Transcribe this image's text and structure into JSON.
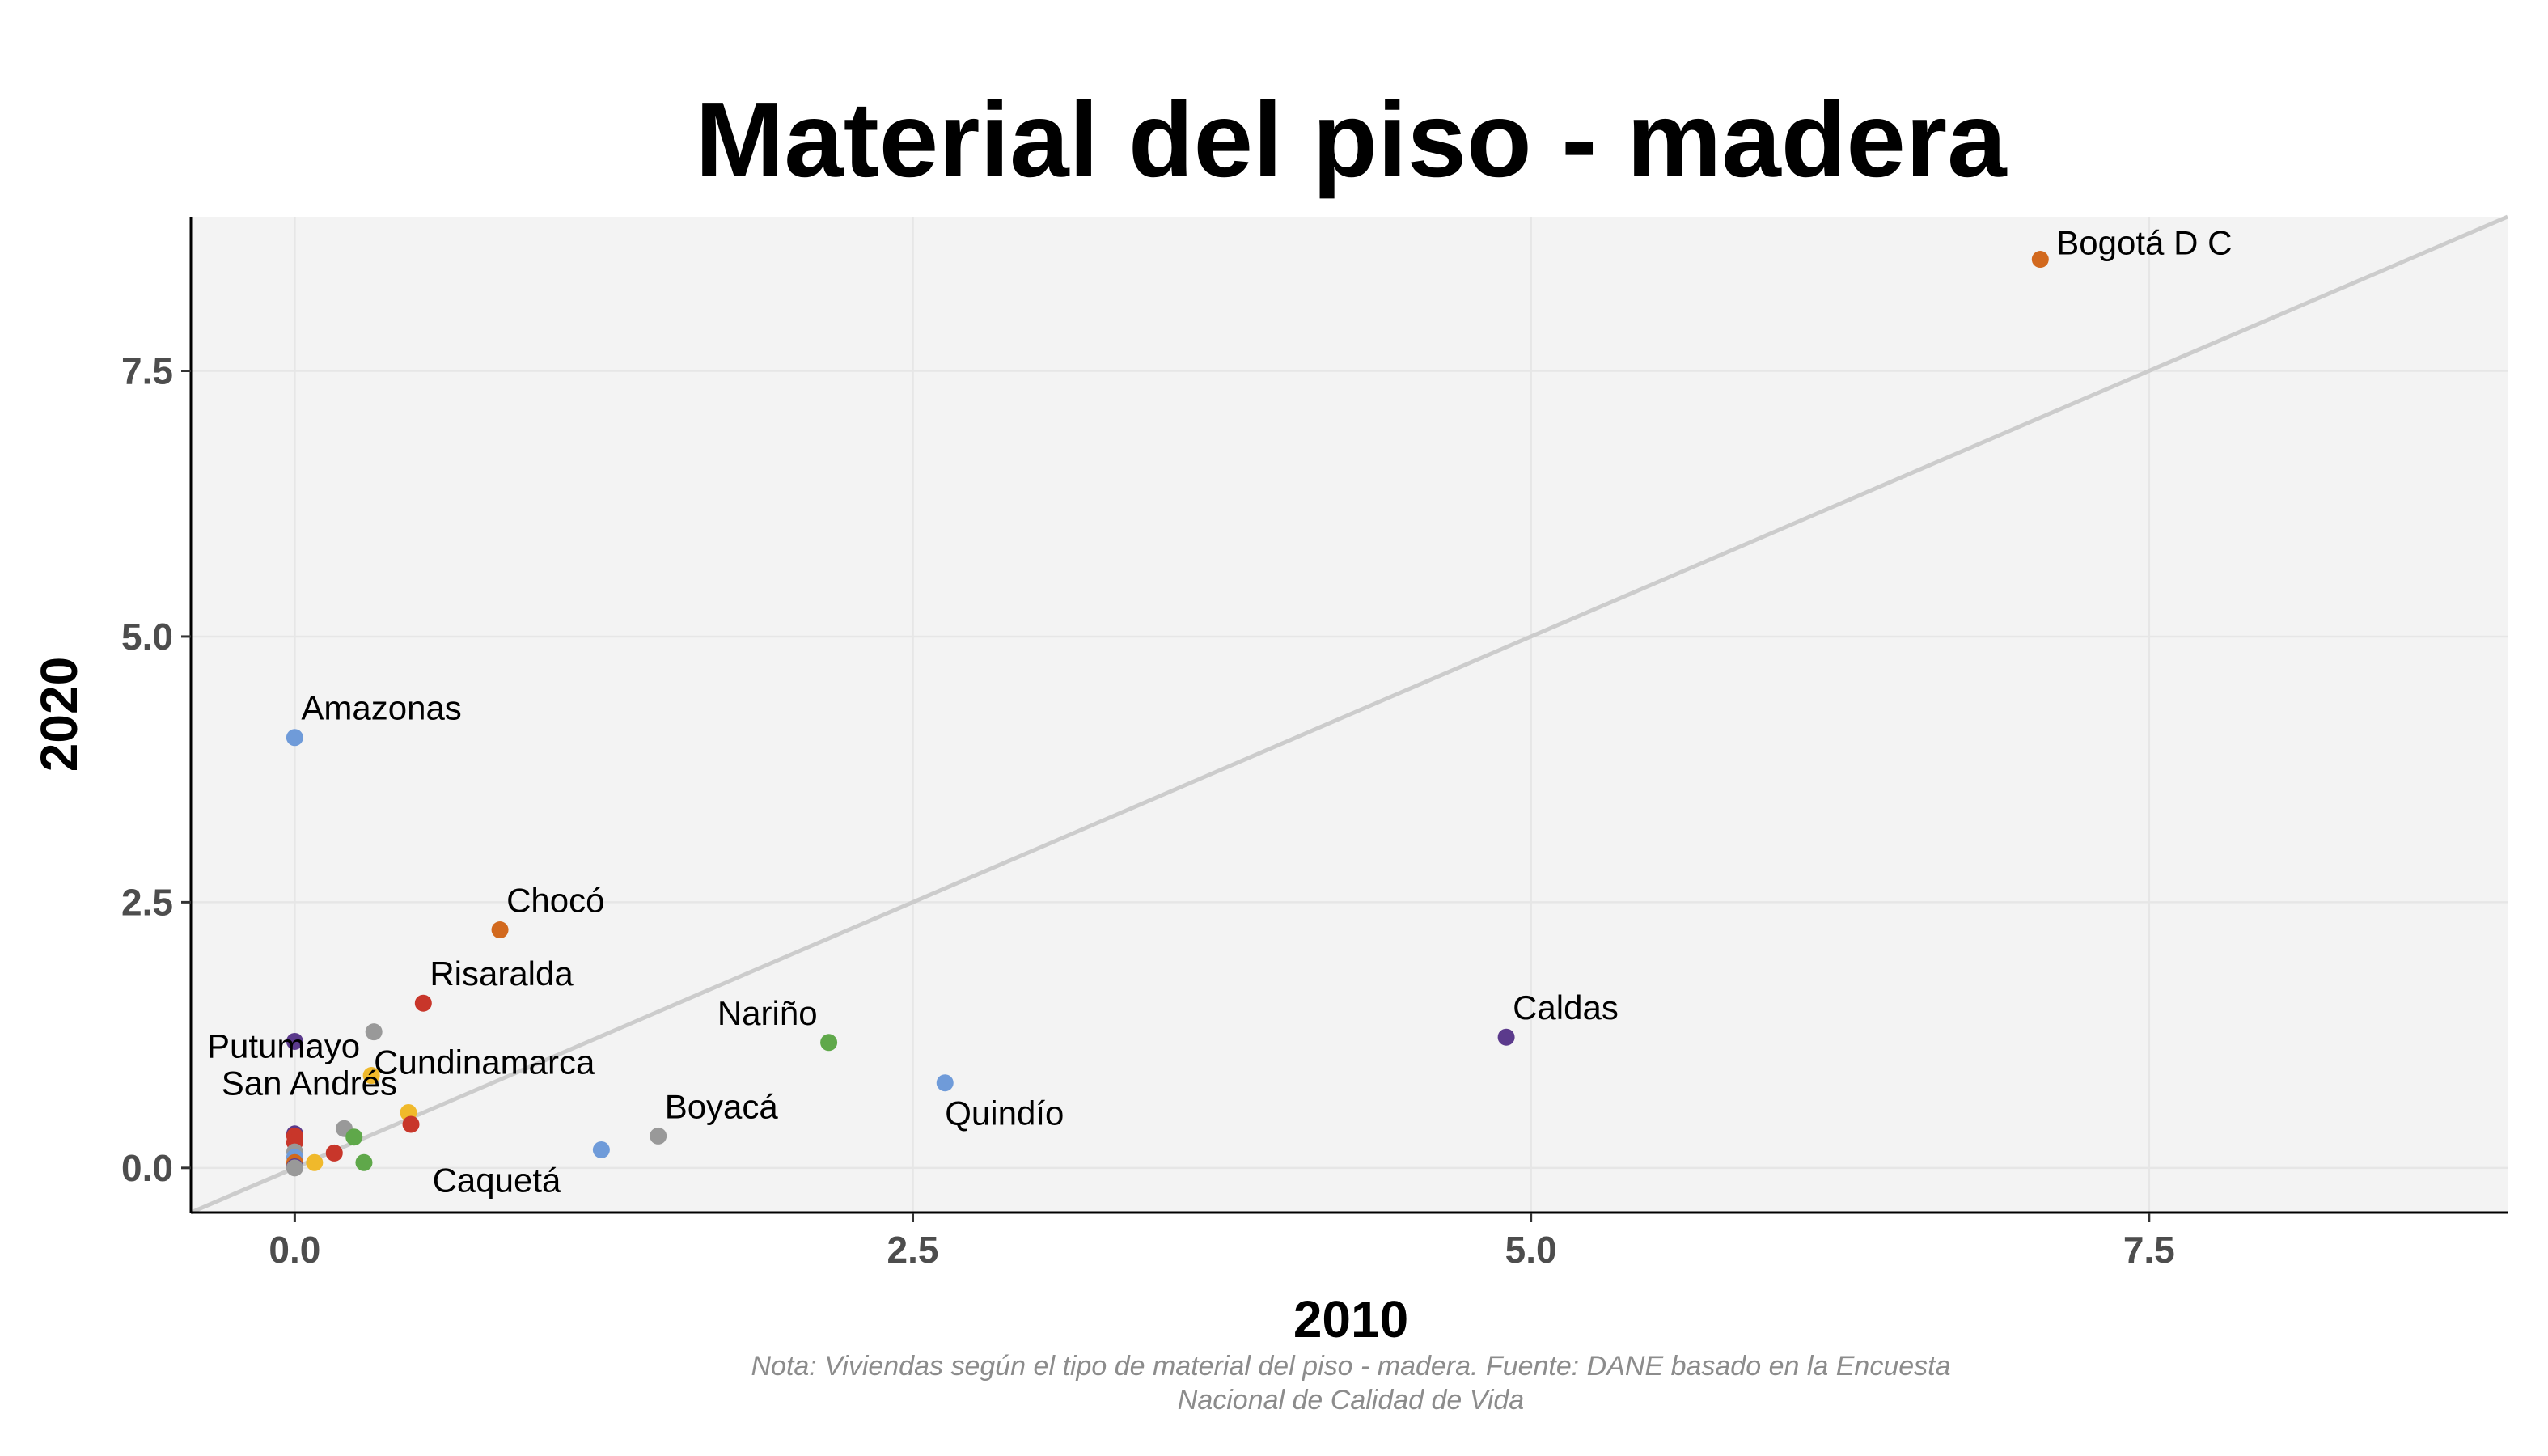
{
  "chart_data": {
    "type": "scatter",
    "title": "Material del piso - madera",
    "xlabel": "2010",
    "ylabel": "2020",
    "xlim": [
      -0.42,
      8.95
    ],
    "ylim": [
      -0.42,
      8.95
    ],
    "xticks": [
      0.0,
      2.5,
      5.0,
      7.5
    ],
    "yticks": [
      0.0,
      2.5,
      5.0,
      7.5
    ],
    "xtick_labels": [
      "0.0",
      "2.5",
      "5.0",
      "7.5"
    ],
    "ytick_labels": [
      "0.0",
      "2.5",
      "5.0",
      "7.5"
    ],
    "grid": true,
    "reference_line": {
      "type": "identity",
      "color": "#cccccc"
    },
    "caption": [
      "Nota: Viviendas según el tipo de material del piso - madera. Fuente: DANE basado en la Encuesta",
      "Nacional de Calidad de Vida"
    ],
    "points": [
      {
        "label": "Bogotá D C",
        "x": 7.06,
        "y": 8.55,
        "color": "#d2691e",
        "label_pos": "right"
      },
      {
        "label": "Caldas",
        "x": 4.9,
        "y": 1.23,
        "color": "#5b3a8c",
        "label_pos": "above-right"
      },
      {
        "label": "Amazonas",
        "x": 0.0,
        "y": 4.05,
        "color": "#6f9bd9",
        "label_pos": "above-right"
      },
      {
        "label": "Chocó",
        "x": 0.83,
        "y": 2.24,
        "color": "#d2691e",
        "label_pos": "above-right"
      },
      {
        "label": "Risaralda",
        "x": 0.52,
        "y": 1.55,
        "color": "#c8362a",
        "label_pos": "above-right"
      },
      {
        "label": "Cundinamarca",
        "x": 0.32,
        "y": 1.28,
        "color": "#999999",
        "label_pos": "below-right"
      },
      {
        "label": "Nariño",
        "x": 2.16,
        "y": 1.18,
        "color": "#5fa84a",
        "label_pos": "above-left"
      },
      {
        "label": "Quindío",
        "x": 2.63,
        "y": 0.8,
        "color": "#6f9bd9",
        "label_pos": "below-right"
      },
      {
        "label": "Putumayo",
        "x": 0.31,
        "y": 0.87,
        "color": "#f0b92b",
        "label_pos": "above-left"
      },
      {
        "label": "San Andrés",
        "x": 0.46,
        "y": 0.52,
        "color": "#f0b92b",
        "label_pos": "above-left"
      },
      {
        "label": "Boyacá",
        "x": 1.47,
        "y": 0.3,
        "color": "#999999",
        "label_pos": "above-right"
      },
      {
        "label": "Caquetá",
        "x": 1.24,
        "y": 0.17,
        "color": "#6f9bd9",
        "label_pos": "below-left"
      },
      {
        "label": "",
        "x": 0.0,
        "y": 1.19,
        "color": "#5b3a8c"
      },
      {
        "label": "",
        "x": 0.47,
        "y": 0.41,
        "color": "#c8362a"
      },
      {
        "label": "",
        "x": 0.2,
        "y": 0.37,
        "color": "#999999"
      },
      {
        "label": "",
        "x": 0.24,
        "y": 0.29,
        "color": "#5fa84a"
      },
      {
        "label": "",
        "x": 0.0,
        "y": 0.32,
        "color": "#5b3a8c"
      },
      {
        "label": "",
        "x": 0.0,
        "y": 0.3,
        "color": "#c8362a"
      },
      {
        "label": "",
        "x": 0.0,
        "y": 0.24,
        "color": "#c8362a"
      },
      {
        "label": "",
        "x": 0.0,
        "y": 0.15,
        "color": "#999999"
      },
      {
        "label": "",
        "x": 0.16,
        "y": 0.14,
        "color": "#c8362a"
      },
      {
        "label": "",
        "x": 0.0,
        "y": 0.1,
        "color": "#6f9bd9"
      },
      {
        "label": "",
        "x": 0.08,
        "y": 0.05,
        "color": "#f0b92b"
      },
      {
        "label": "",
        "x": 0.0,
        "y": 0.05,
        "color": "#d2691e"
      },
      {
        "label": "",
        "x": 0.28,
        "y": 0.05,
        "color": "#5fa84a"
      },
      {
        "label": "",
        "x": 0.0,
        "y": 0.01,
        "color": "#5b3a8c"
      },
      {
        "label": "",
        "x": 0.0,
        "y": 0.0,
        "color": "#999999"
      }
    ]
  }
}
